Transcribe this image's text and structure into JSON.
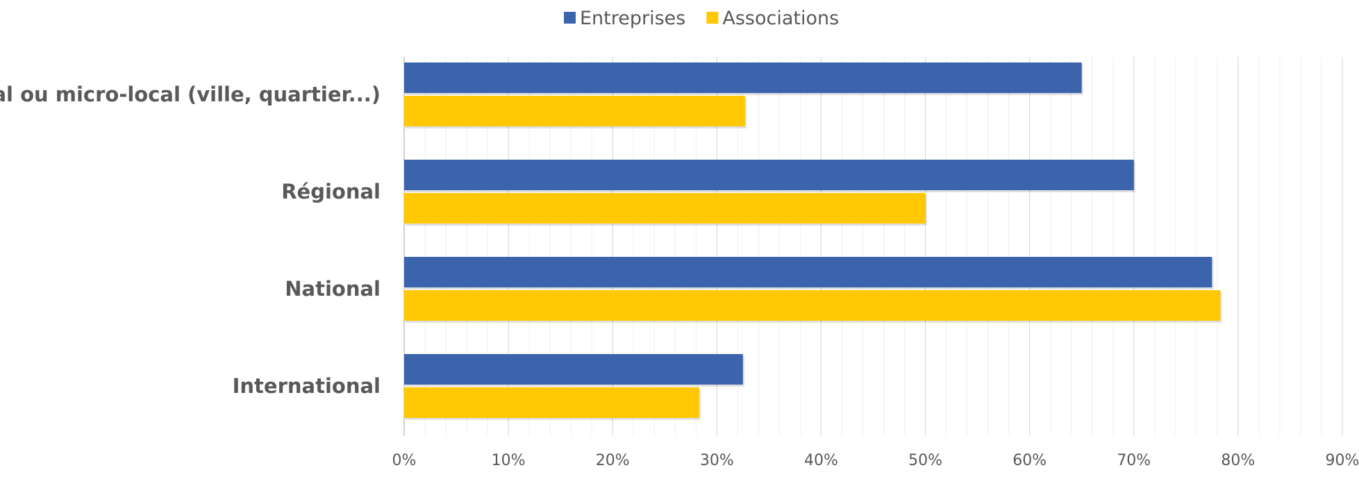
{
  "chart_data": {
    "type": "bar",
    "orientation": "horizontal",
    "categories": [
      "Local ou micro-local (ville, quartier...)",
      "Régional",
      "National",
      "International"
    ],
    "series": [
      {
        "name": "Entreprises",
        "color": "#3b64ad",
        "values": [
          65,
          70,
          77.5,
          32.5
        ]
      },
      {
        "name": "Associations",
        "color": "#ffc800",
        "values": [
          32.7,
          50,
          78.3,
          28.3
        ]
      }
    ],
    "x_ticks": [
      "0%",
      "10%",
      "20%",
      "30%",
      "40%",
      "50%",
      "60%",
      "70%",
      "80%",
      "90%"
    ],
    "xlim": [
      0,
      90
    ],
    "minor_grid_step": 2,
    "grid": true,
    "legend_position": "top-center",
    "title": "",
    "xlabel": "",
    "ylabel": ""
  }
}
